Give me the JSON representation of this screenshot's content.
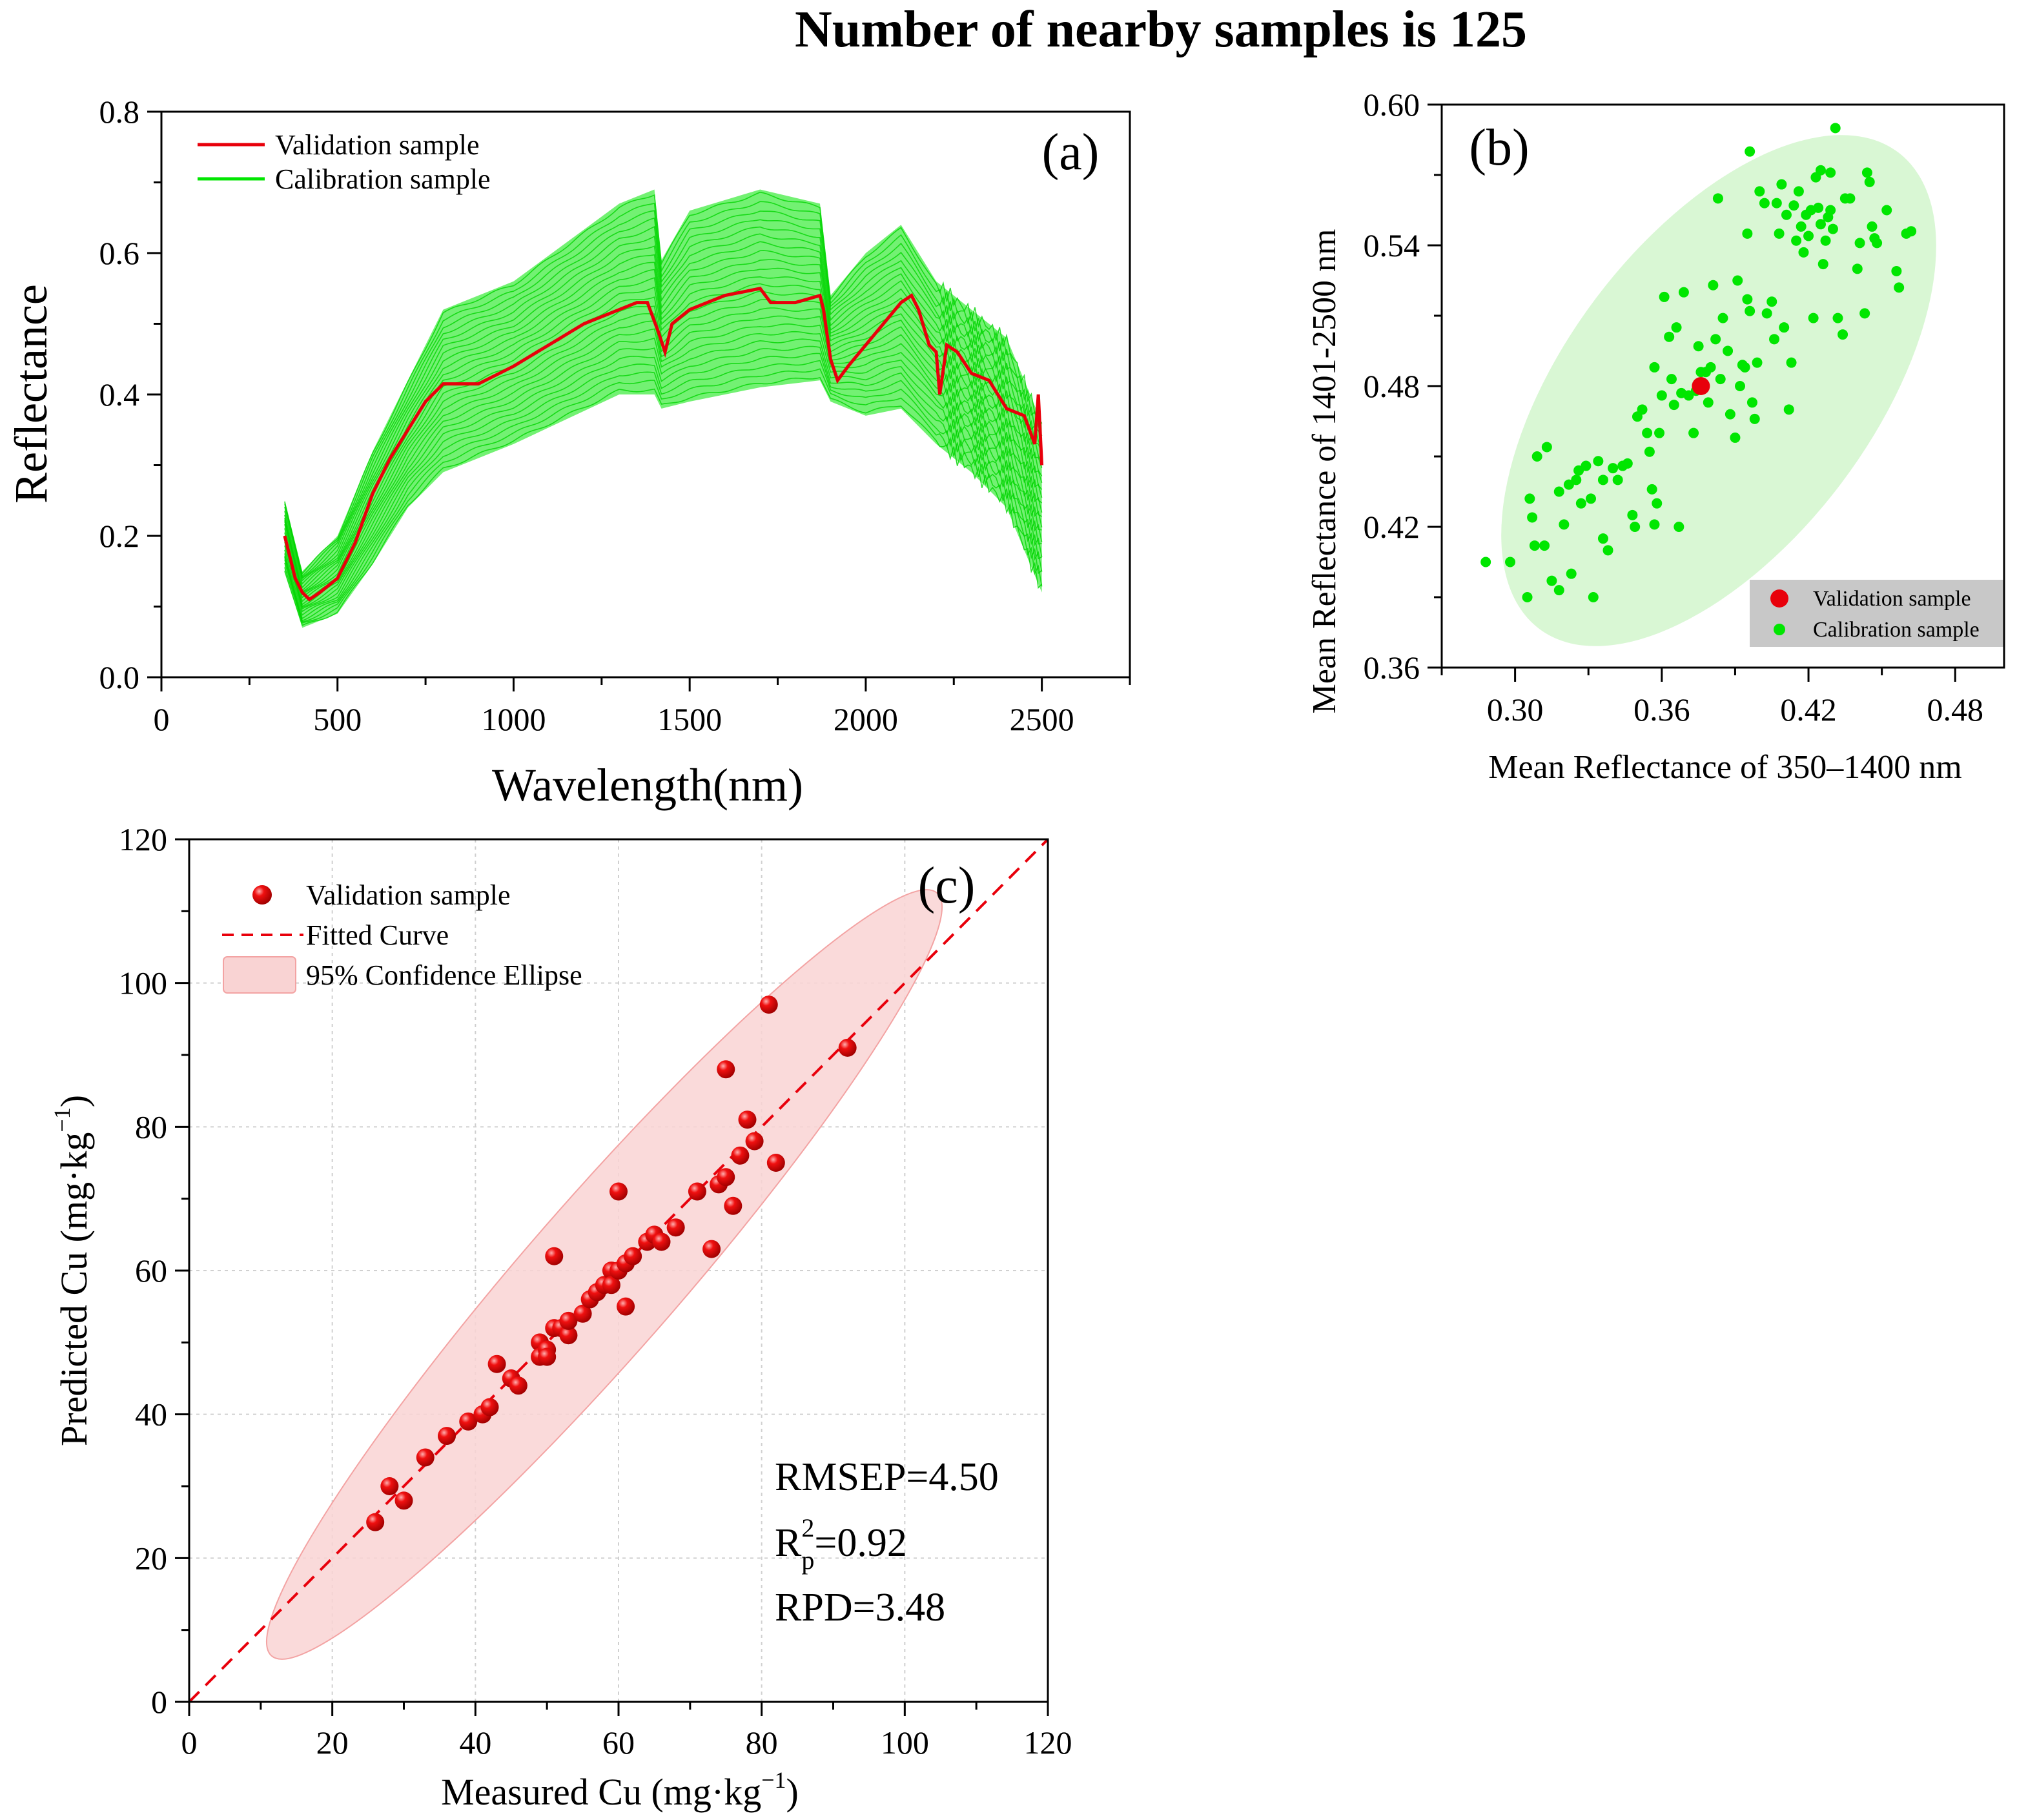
{
  "figure_title": "Number of nearby samples is 125",
  "colors": {
    "validation": "#e8000b",
    "calibration": "#00e600",
    "ellipse_b": "#d9f7d4",
    "ellipse_c": "#f9d3d3",
    "ellipse_c_stroke": "#f3a3a3"
  },
  "panel_a": {
    "letter": "(a)",
    "ylabel": "Reflectance",
    "xlabel": "Wavelength(nm)",
    "legend": {
      "validation": "Validation sample",
      "calibration": "Calibration sample"
    },
    "xticks": [
      "0",
      "500",
      "1000",
      "1500",
      "2000",
      "2500"
    ],
    "yticks": [
      "0.0",
      "0.2",
      "0.4",
      "0.6",
      "0.8"
    ]
  },
  "panel_b": {
    "letter": "(b)",
    "ylabel": "Mean Reflectance of 1401-2500 nm",
    "xlabel": "Mean Reflectance of 350–1400 nm",
    "legend": {
      "validation": "Validation sample",
      "calibration": "Calibration sample"
    },
    "xticks": [
      "0.30",
      "0.36",
      "0.42",
      "0.48"
    ],
    "yticks": [
      "0.36",
      "0.42",
      "0.48",
      "0.54",
      "0.60"
    ]
  },
  "panel_c": {
    "letter": "(c)",
    "ylabel": "Predicted Cu (mg·kg",
    "xlabel": "Measured Cu (mg·kg",
    "unit_sup": "−1",
    "legend": {
      "validation": "Validation sample",
      "fit": "Fitted Curve",
      "ellipse": "95% Confidence Ellipse"
    },
    "xticks": [
      "0",
      "20",
      "40",
      "60",
      "80",
      "100",
      "120"
    ],
    "yticks": [
      "0",
      "20",
      "40",
      "60",
      "80",
      "100",
      "120"
    ],
    "stats": {
      "rmsep": "RMSEP=4.50",
      "r2_prefix": "R",
      "r2_sup": "2",
      "r2_sub": "p",
      "r2_value": "=0.92",
      "rpd": "RPD=3.48"
    }
  },
  "chart_data": [
    {
      "type": "line",
      "panel": "a",
      "title": "(a)",
      "xlabel": "Wavelength(nm)",
      "ylabel": "Reflectance",
      "xlim": [
        0,
        2750
      ],
      "ylim": [
        0,
        0.8
      ],
      "series": [
        {
          "name": "Validation sample",
          "x": [
            350,
            380,
            400,
            420,
            450,
            500,
            550,
            600,
            650,
            700,
            750,
            800,
            900,
            1000,
            1100,
            1200,
            1300,
            1350,
            1380,
            1410,
            1430,
            1450,
            1500,
            1600,
            1700,
            1730,
            1760,
            1800,
            1870,
            1880,
            1900,
            1920,
            1950,
            2000,
            2050,
            2100,
            2130,
            2150,
            2180,
            2200,
            2210,
            2230,
            2260,
            2300,
            2350,
            2400,
            2450,
            2480,
            2490,
            2500
          ],
          "y": [
            0.2,
            0.14,
            0.12,
            0.11,
            0.12,
            0.14,
            0.19,
            0.26,
            0.31,
            0.35,
            0.39,
            0.415,
            0.415,
            0.44,
            0.47,
            0.5,
            0.52,
            0.53,
            0.53,
            0.49,
            0.46,
            0.5,
            0.52,
            0.54,
            0.55,
            0.53,
            0.53,
            0.53,
            0.54,
            0.52,
            0.45,
            0.42,
            0.44,
            0.47,
            0.5,
            0.53,
            0.54,
            0.52,
            0.47,
            0.46,
            0.4,
            0.47,
            0.46,
            0.43,
            0.42,
            0.38,
            0.37,
            0.33,
            0.4,
            0.3
          ]
        },
        {
          "name": "Calibration sample",
          "note": "125 spectra forming an envelope",
          "x": [
            350,
            400,
            500,
            600,
            700,
            800,
            1000,
            1300,
            1400,
            1420,
            1500,
            1700,
            1870,
            1900,
            2000,
            2100,
            2200,
            2300,
            2400,
            2500
          ],
          "y_min": [
            0.15,
            0.07,
            0.09,
            0.16,
            0.24,
            0.29,
            0.33,
            0.4,
            0.4,
            0.38,
            0.39,
            0.41,
            0.42,
            0.39,
            0.37,
            0.38,
            0.33,
            0.29,
            0.24,
            0.12
          ],
          "y_max": [
            0.25,
            0.15,
            0.2,
            0.32,
            0.42,
            0.52,
            0.56,
            0.67,
            0.69,
            0.59,
            0.66,
            0.69,
            0.67,
            0.54,
            0.6,
            0.64,
            0.56,
            0.52,
            0.48,
            0.36
          ]
        }
      ]
    },
    {
      "type": "scatter",
      "panel": "b",
      "title": "(b)",
      "xlabel": "Mean Reflectance of 350–1400 nm",
      "ylabel": "Mean Reflectance of 1401-2500 nm",
      "xlim": [
        0.27,
        0.5
      ],
      "ylim": [
        0.36,
        0.6
      ],
      "series": [
        {
          "name": "Validation sample",
          "points": [
            [
              0.376,
              0.48
            ]
          ]
        },
        {
          "name": "Calibration sample",
          "points": [
            [
              0.288,
              0.405
            ],
            [
              0.298,
              0.405
            ],
            [
              0.305,
              0.39
            ],
            [
              0.306,
              0.432
            ],
            [
              0.307,
              0.424
            ],
            [
              0.308,
              0.412
            ],
            [
              0.312,
              0.412
            ],
            [
              0.309,
              0.45
            ],
            [
              0.313,
              0.454
            ],
            [
              0.315,
              0.397
            ],
            [
              0.318,
              0.393
            ],
            [
              0.32,
              0.421
            ],
            [
              0.322,
              0.438
            ],
            [
              0.323,
              0.4
            ],
            [
              0.325,
              0.44
            ],
            [
              0.326,
              0.444
            ],
            [
              0.327,
              0.43
            ],
            [
              0.329,
              0.446
            ],
            [
              0.331,
              0.432
            ],
            [
              0.332,
              0.39
            ],
            [
              0.334,
              0.448
            ],
            [
              0.336,
              0.44
            ],
            [
              0.336,
              0.415
            ],
            [
              0.338,
              0.41
            ],
            [
              0.34,
              0.445
            ],
            [
              0.342,
              0.44
            ],
            [
              0.344,
              0.446
            ],
            [
              0.346,
              0.447
            ],
            [
              0.348,
              0.425
            ],
            [
              0.349,
              0.42
            ],
            [
              0.35,
              0.467
            ],
            [
              0.352,
              0.47
            ],
            [
              0.354,
              0.46
            ],
            [
              0.356,
              0.436
            ],
            [
              0.357,
              0.421
            ],
            [
              0.358,
              0.43
            ],
            [
              0.355,
              0.452
            ],
            [
              0.357,
              0.488
            ],
            [
              0.359,
              0.46
            ],
            [
              0.36,
              0.476
            ],
            [
              0.361,
              0.518
            ],
            [
              0.363,
              0.501
            ],
            [
              0.364,
              0.483
            ],
            [
              0.365,
              0.472
            ],
            [
              0.366,
              0.505
            ],
            [
              0.367,
              0.42
            ],
            [
              0.368,
              0.477
            ],
            [
              0.369,
              0.52
            ],
            [
              0.371,
              0.476
            ],
            [
              0.373,
              0.46
            ],
            [
              0.374,
              0.478
            ],
            [
              0.375,
              0.497
            ],
            [
              0.376,
              0.486
            ],
            [
              0.378,
              0.486
            ],
            [
              0.379,
              0.473
            ],
            [
              0.38,
              0.488
            ],
            [
              0.381,
              0.523
            ],
            [
              0.382,
              0.5
            ],
            [
              0.383,
              0.56
            ],
            [
              0.384,
              0.483
            ],
            [
              0.385,
              0.509
            ],
            [
              0.387,
              0.495
            ],
            [
              0.388,
              0.468
            ],
            [
              0.39,
              0.458
            ],
            [
              0.391,
              0.525
            ],
            [
              0.392,
              0.48
            ],
            [
              0.393,
              0.489
            ],
            [
              0.394,
              0.488
            ],
            [
              0.395,
              0.517
            ],
            [
              0.396,
              0.512
            ],
            [
              0.396,
              0.58
            ],
            [
              0.397,
              0.473
            ],
            [
              0.398,
              0.466
            ],
            [
              0.399,
              0.49
            ],
            [
              0.4,
              0.563
            ],
            [
              0.402,
              0.558
            ],
            [
              0.403,
              0.511
            ],
            [
              0.405,
              0.516
            ],
            [
              0.406,
              0.5
            ],
            [
              0.407,
              0.558
            ],
            [
              0.408,
              0.545
            ],
            [
              0.409,
              0.566
            ],
            [
              0.41,
              0.505
            ],
            [
              0.411,
              0.553
            ],
            [
              0.412,
              0.47
            ],
            [
              0.413,
              0.49
            ],
            [
              0.414,
              0.557
            ],
            [
              0.415,
              0.542
            ],
            [
              0.416,
              0.563
            ],
            [
              0.417,
              0.548
            ],
            [
              0.418,
              0.537
            ],
            [
              0.419,
              0.553
            ],
            [
              0.42,
              0.544
            ],
            [
              0.421,
              0.555
            ],
            [
              0.422,
              0.509
            ],
            [
              0.423,
              0.569
            ],
            [
              0.424,
              0.556
            ],
            [
              0.425,
              0.549
            ],
            [
              0.426,
              0.532
            ],
            [
              0.427,
              0.542
            ],
            [
              0.428,
              0.552
            ],
            [
              0.429,
              0.555
            ],
            [
              0.43,
              0.547
            ],
            [
              0.431,
              0.59
            ],
            [
              0.432,
              0.509
            ],
            [
              0.434,
              0.502
            ],
            [
              0.435,
              0.56
            ],
            [
              0.437,
              0.56
            ],
            [
              0.44,
              0.53
            ],
            [
              0.441,
              0.541
            ],
            [
              0.443,
              0.511
            ],
            [
              0.444,
              0.571
            ],
            [
              0.445,
              0.567
            ],
            [
              0.446,
              0.548
            ],
            [
              0.447,
              0.543
            ],
            [
              0.448,
              0.541
            ],
            [
              0.452,
              0.555
            ],
            [
              0.456,
              0.529
            ],
            [
              0.457,
              0.522
            ],
            [
              0.46,
              0.545
            ],
            [
              0.462,
              0.546
            ],
            [
              0.425,
              0.572
            ],
            [
              0.429,
              0.571
            ],
            [
              0.395,
              0.545
            ],
            [
              0.318,
              0.435
            ]
          ]
        }
      ]
    },
    {
      "type": "scatter",
      "panel": "c",
      "title": "(c)",
      "xlabel": "Measured Cu (mg·kg⁻¹)",
      "ylabel": "Predicted Cu (mg·kg⁻¹)",
      "xlim": [
        0,
        120
      ],
      "ylim": [
        0,
        120
      ],
      "series": [
        {
          "name": "Validation sample",
          "points": [
            [
              26,
              25
            ],
            [
              28,
              30
            ],
            [
              30,
              28
            ],
            [
              33,
              34
            ],
            [
              36,
              37
            ],
            [
              39,
              39
            ],
            [
              41,
              40
            ],
            [
              42,
              41
            ],
            [
              43,
              47
            ],
            [
              45,
              45
            ],
            [
              46,
              44
            ],
            [
              49,
              50
            ],
            [
              49,
              48
            ],
            [
              50,
              49
            ],
            [
              50,
              48
            ],
            [
              51,
              62
            ],
            [
              51,
              52
            ],
            [
              52,
              52
            ],
            [
              53,
              51
            ],
            [
              53,
              53
            ],
            [
              55,
              54
            ],
            [
              56,
              56
            ],
            [
              57,
              57
            ],
            [
              58,
              58
            ],
            [
              59,
              60
            ],
            [
              59,
              58
            ],
            [
              60,
              71
            ],
            [
              60,
              60
            ],
            [
              61,
              61
            ],
            [
              61,
              55
            ],
            [
              62,
              62
            ],
            [
              64,
              64
            ],
            [
              65,
              65
            ],
            [
              66,
              64
            ],
            [
              68,
              66
            ],
            [
              71,
              71
            ],
            [
              73,
              63
            ],
            [
              74,
              72
            ],
            [
              75,
              73
            ],
            [
              76,
              69
            ],
            [
              75,
              88
            ],
            [
              77,
              76
            ],
            [
              78,
              81
            ],
            [
              79,
              78
            ],
            [
              81,
              97
            ],
            [
              82,
              75
            ],
            [
              92,
              91
            ]
          ]
        },
        {
          "name": "Fitted Curve",
          "type": "line",
          "x": [
            0,
            120
          ],
          "y": [
            0,
            120
          ]
        }
      ],
      "annotations": [
        "RMSEP=4.50",
        "R2p=0.92",
        "RPD=3.48"
      ]
    }
  ]
}
